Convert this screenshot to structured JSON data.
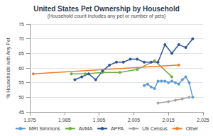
{
  "chart_data": {
    "type": "line",
    "title": "United States Pet Ownership by Household",
    "subtitle": "(Household count includes any pet or number of pets)",
    "y_label": "% Households with Any Pet",
    "xlim": [
      1975,
      2025
    ],
    "xticks": [
      1975,
      1985,
      1995,
      2005,
      2015,
      2025
    ],
    "ylim": [
      45,
      75
    ],
    "yticks": [
      45,
      50,
      55,
      60,
      65,
      70,
      75
    ],
    "grid": true,
    "legend": "bottom",
    "marker": "circle",
    "series": [
      {
        "name": "MRI Simmons",
        "color": "#5B9BD5",
        "x": [
          2008,
          2009,
          2010,
          2011,
          2012,
          2013,
          2014,
          2015,
          2016,
          2017,
          2018,
          2019,
          2020,
          2021,
          2022
        ],
        "values": [
          54,
          54.5,
          53.5,
          53,
          55.5,
          55.5,
          55.5,
          55,
          55.5,
          55,
          54.5,
          56,
          57,
          55,
          50
        ]
      },
      {
        "name": "AVMA",
        "color": "#70AD47",
        "x": [
          1987,
          1991,
          1996,
          2001,
          2006,
          2011,
          2016
        ],
        "values": [
          58,
          58,
          58.5,
          58.5,
          59.5,
          62.5,
          57
        ]
      },
      {
        "name": "APPA",
        "color": "#2F5597",
        "x": [
          1988,
          1990,
          1992,
          1994,
          1996,
          1998,
          2000,
          2002,
          2004,
          2006,
          2008,
          2010,
          2012,
          2014,
          2016,
          2018,
          2020,
          2022
        ],
        "values": [
          56,
          57,
          58,
          56,
          59,
          61,
          62,
          62,
          63,
          63,
          62,
          62,
          62,
          68,
          65,
          68,
          67,
          70
        ]
      },
      {
        "name": "US Census",
        "color": "#A5A5A5",
        "x": [
          2012,
          2015,
          2017,
          2019,
          2021
        ],
        "values": [
          48,
          48.5,
          49,
          49.5,
          50
        ]
      },
      {
        "name": "Other",
        "color": "#ED7D31",
        "x": [
          1976,
          2018
        ],
        "values": [
          58,
          61
        ]
      }
    ]
  }
}
